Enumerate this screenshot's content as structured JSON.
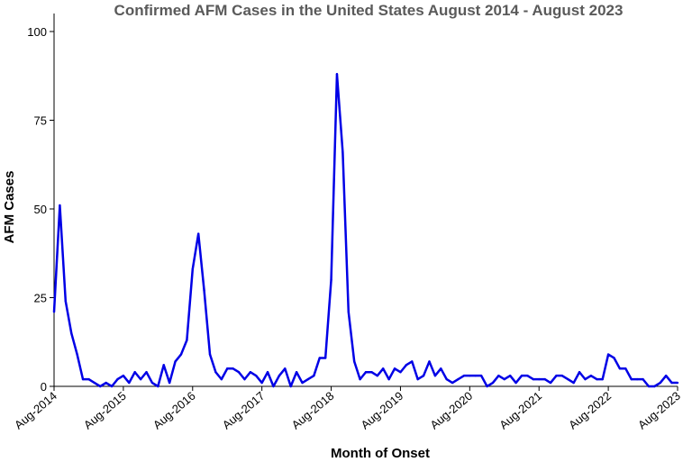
{
  "chart_data": {
    "type": "line",
    "title": "Confirmed AFM Cases in the United States August 2014 - August 2023",
    "xlabel": "Month of Onset",
    "ylabel": "AFM Cases",
    "ylim": [
      0,
      100
    ],
    "yticks": [
      0,
      25,
      50,
      75,
      100
    ],
    "xlim": [
      "2014-08",
      "2023-08"
    ],
    "xticks": [
      "Aug-2014",
      "Aug-2015",
      "Aug-2016",
      "Aug-2017",
      "Aug-2018",
      "Aug-2019",
      "Aug-2020",
      "Aug-2021",
      "Aug-2022",
      "Aug-2023"
    ],
    "grid": false,
    "legend": "none",
    "line_color": "#0000e6",
    "x": [
      "2014-08",
      "2014-09",
      "2014-10",
      "2014-11",
      "2014-12",
      "2015-01",
      "2015-02",
      "2015-03",
      "2015-04",
      "2015-05",
      "2015-06",
      "2015-07",
      "2015-08",
      "2015-09",
      "2015-10",
      "2015-11",
      "2015-12",
      "2016-01",
      "2016-02",
      "2016-03",
      "2016-04",
      "2016-05",
      "2016-06",
      "2016-07",
      "2016-08",
      "2016-09",
      "2016-10",
      "2016-11",
      "2016-12",
      "2017-01",
      "2017-02",
      "2017-03",
      "2017-04",
      "2017-05",
      "2017-06",
      "2017-07",
      "2017-08",
      "2017-09",
      "2017-10",
      "2017-11",
      "2017-12",
      "2018-01",
      "2018-02",
      "2018-03",
      "2018-04",
      "2018-05",
      "2018-06",
      "2018-07",
      "2018-08",
      "2018-09",
      "2018-10",
      "2018-11",
      "2018-12",
      "2019-01",
      "2019-02",
      "2019-03",
      "2019-04",
      "2019-05",
      "2019-06",
      "2019-07",
      "2019-08",
      "2019-09",
      "2019-10",
      "2019-11",
      "2019-12",
      "2020-01",
      "2020-02",
      "2020-03",
      "2020-04",
      "2020-05",
      "2020-06",
      "2020-07",
      "2020-08",
      "2020-09",
      "2020-10",
      "2020-11",
      "2020-12",
      "2021-01",
      "2021-02",
      "2021-03",
      "2021-04",
      "2021-05",
      "2021-06",
      "2021-07",
      "2021-08",
      "2021-09",
      "2021-10",
      "2021-11",
      "2021-12",
      "2022-01",
      "2022-02",
      "2022-03",
      "2022-04",
      "2022-05",
      "2022-06",
      "2022-07",
      "2022-08",
      "2022-09",
      "2022-10",
      "2022-11",
      "2022-12",
      "2023-01",
      "2023-02",
      "2023-03",
      "2023-04",
      "2023-05",
      "2023-06",
      "2023-07",
      "2023-08"
    ],
    "values": [
      21,
      51,
      24,
      15,
      9,
      2,
      2,
      1,
      0,
      1,
      0,
      2,
      3,
      1,
      4,
      2,
      4,
      1,
      0,
      6,
      1,
      7,
      9,
      13,
      33,
      43,
      27,
      9,
      4,
      2,
      5,
      5,
      4,
      2,
      4,
      3,
      1,
      4,
      0,
      3,
      5,
      0,
      4,
      1,
      2,
      3,
      8,
      8,
      30,
      88,
      66,
      21,
      7,
      2,
      4,
      4,
      3,
      5,
      2,
      5,
      4,
      6,
      7,
      2,
      3,
      7,
      3,
      5,
      2,
      1,
      2,
      3,
      3,
      3,
      3,
      0,
      1,
      3,
      2,
      3,
      1,
      3,
      3,
      2,
      2,
      2,
      1,
      3,
      3,
      2,
      1,
      4,
      2,
      3,
      2,
      2,
      9,
      8,
      5,
      5,
      2,
      2,
      2,
      0,
      0,
      1,
      3,
      1,
      1
    ]
  }
}
